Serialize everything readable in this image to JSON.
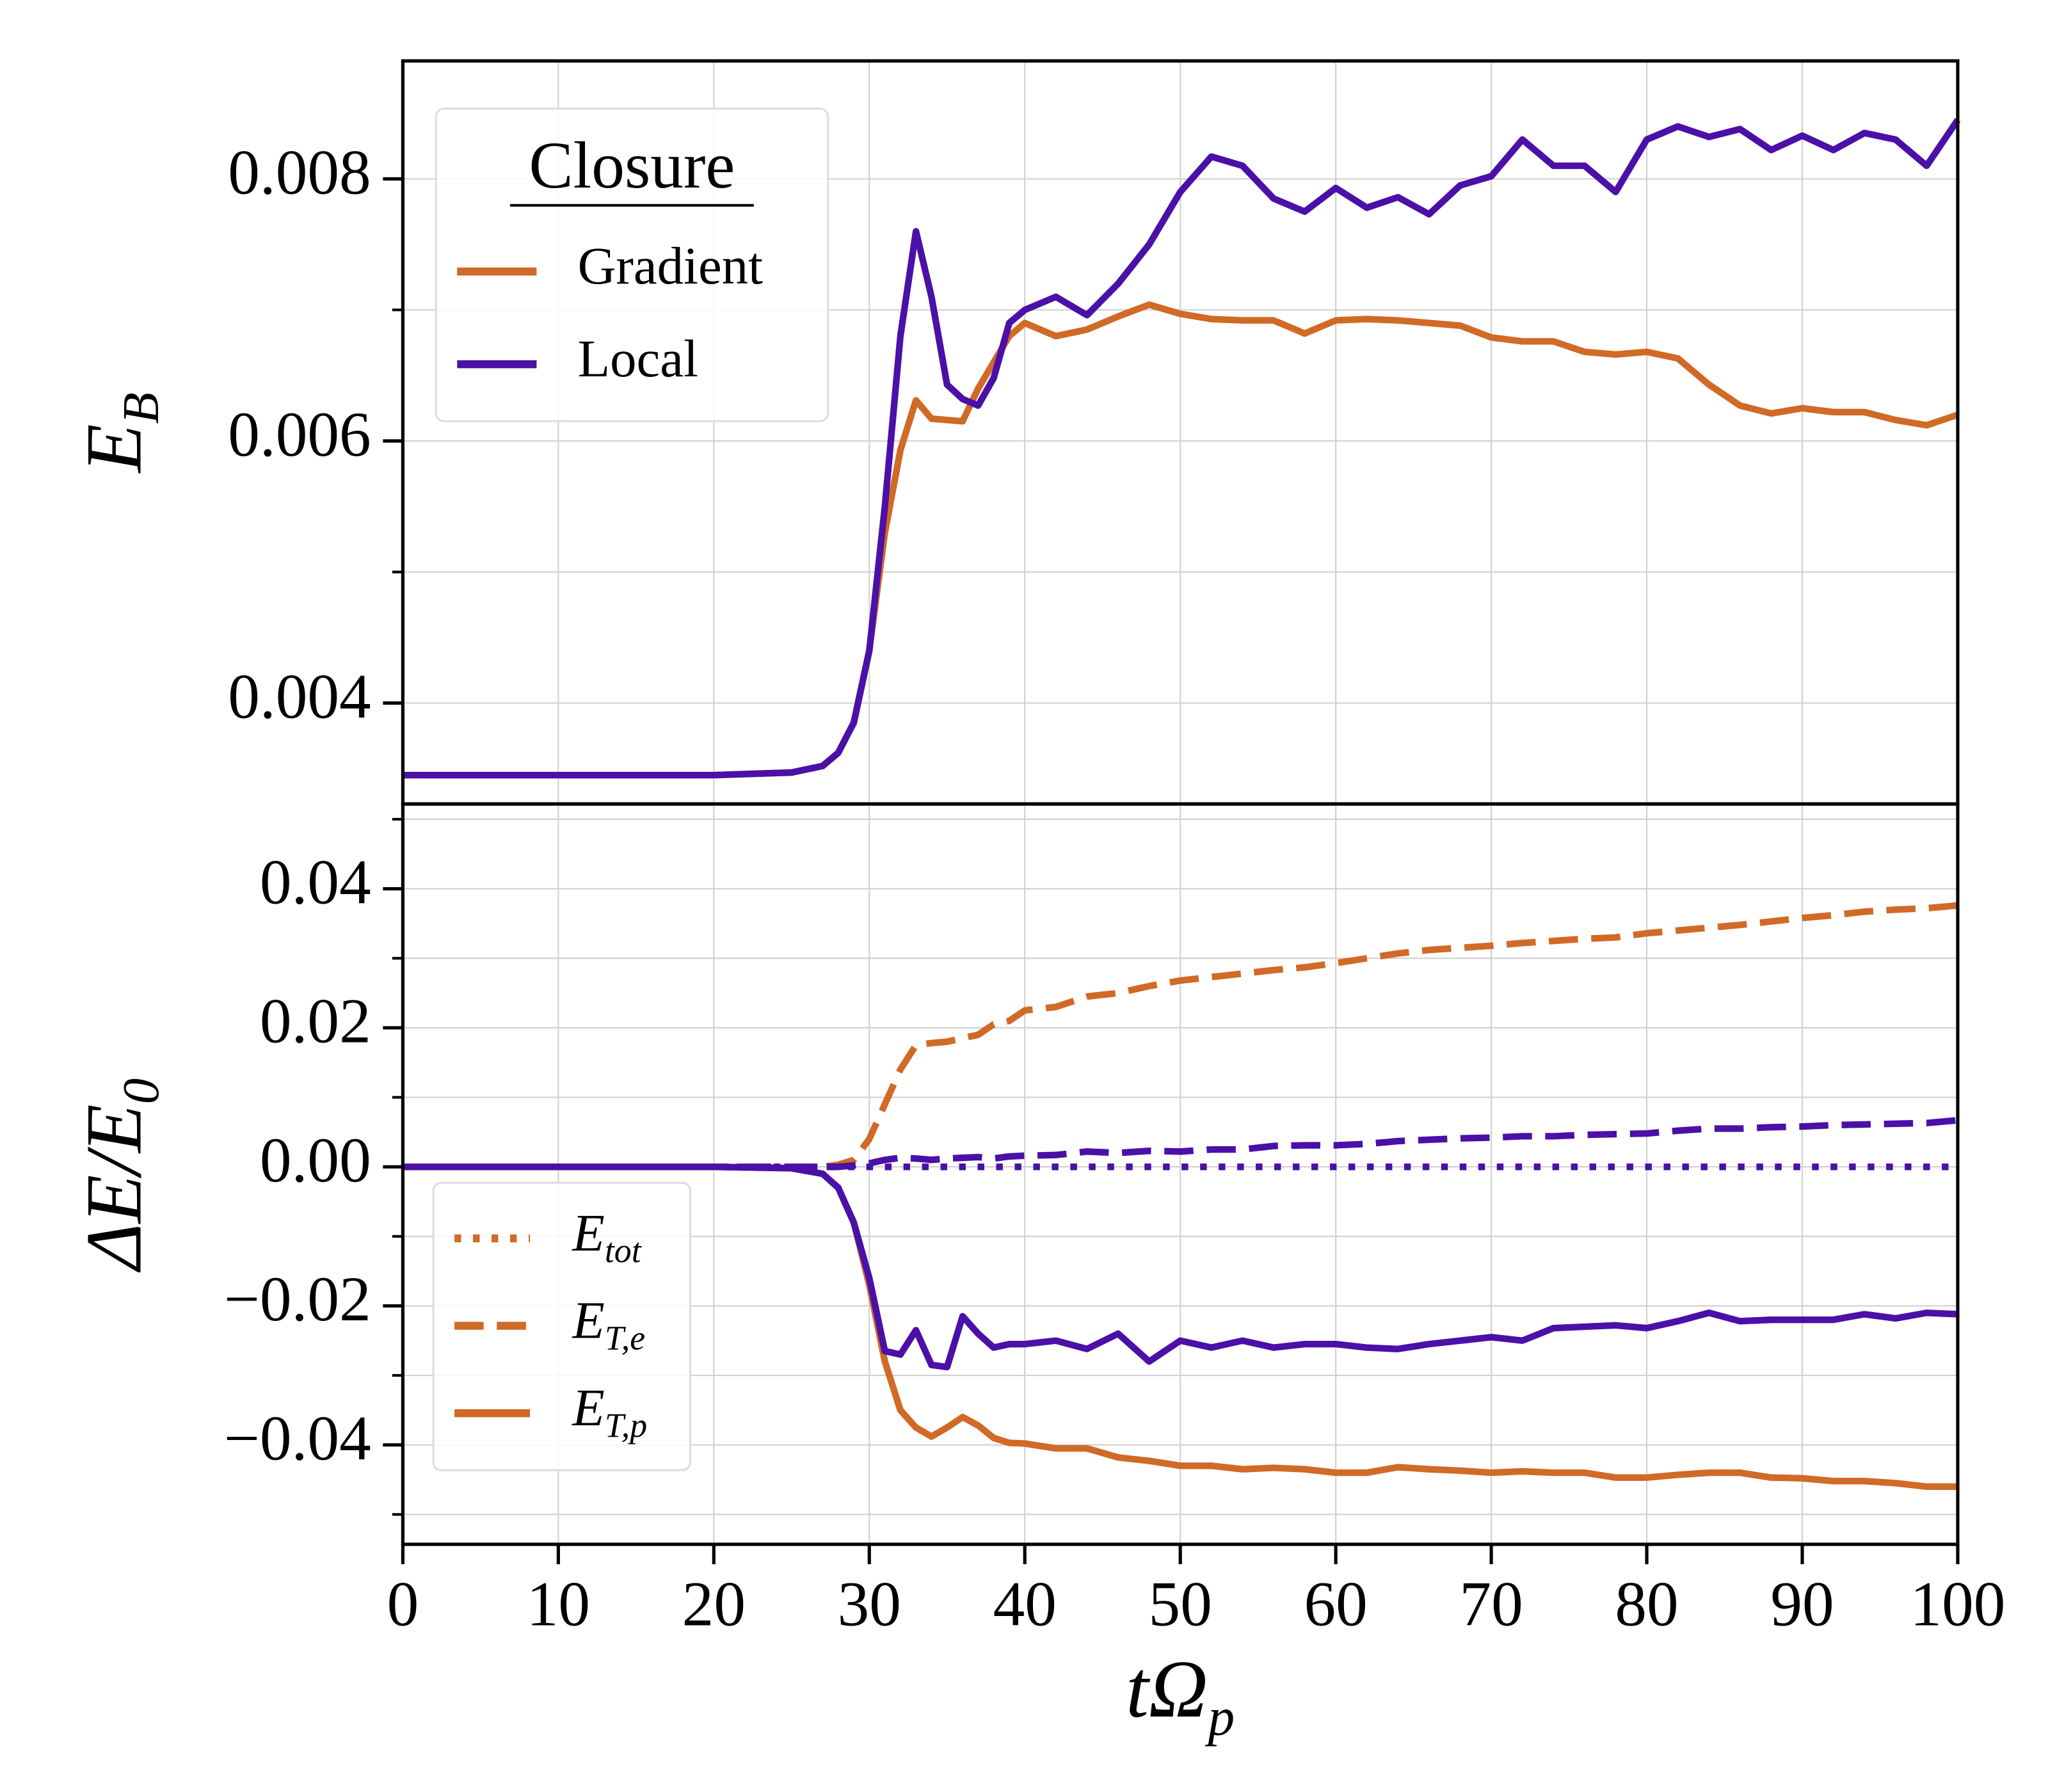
{
  "chart_data": [
    {
      "type": "line",
      "ylabel": {
        "text": "E",
        "sub": "B"
      },
      "legend_title": "Closure",
      "legend": "upper left",
      "grid": true,
      "x": [
        0,
        5,
        10,
        15,
        20,
        25,
        27,
        28,
        29,
        30,
        31,
        32,
        33,
        34,
        35,
        36,
        37,
        38,
        39,
        40,
        42,
        44,
        46,
        48,
        50,
        52,
        54,
        56,
        58,
        60,
        62,
        64,
        66,
        68,
        70,
        72,
        74,
        76,
        78,
        80,
        82,
        84,
        86,
        88,
        90,
        92,
        94,
        96,
        98,
        100
      ],
      "xlim": [
        0,
        100
      ],
      "xticks": [
        0,
        10,
        20,
        30,
        40,
        50,
        60,
        70,
        80,
        90,
        100
      ],
      "ylim": [
        0.00323,
        0.0089
      ],
      "yticks": [
        0.004,
        0.006,
        0.008
      ],
      "yminorticks": [
        0.005,
        0.007
      ],
      "series": [
        {
          "name": "Gradient",
          "color": "#d06a26",
          "style": "solid",
          "values": [
            0.00345,
            0.00345,
            0.00345,
            0.00345,
            0.00345,
            0.00347,
            0.00352,
            0.00362,
            0.00385,
            0.0044,
            0.0053,
            0.00593,
            0.00631,
            0.00617,
            0.00616,
            0.00615,
            0.0064,
            0.0066,
            0.0068,
            0.0069,
            0.0068,
            0.00685,
            0.00695,
            0.00704,
            0.00697,
            0.00693,
            0.00692,
            0.00692,
            0.00682,
            0.00692,
            0.00693,
            0.00692,
            0.0069,
            0.00688,
            0.00679,
            0.00676,
            0.00676,
            0.00668,
            0.00666,
            0.00668,
            0.00663,
            0.00643,
            0.00627,
            0.00621,
            0.00625,
            0.00622,
            0.00622,
            0.00616,
            0.00612,
            0.0062
          ]
        },
        {
          "name": "Local",
          "color": "#4a10a8",
          "style": "solid",
          "values": [
            0.00345,
            0.00345,
            0.00345,
            0.00345,
            0.00345,
            0.00347,
            0.00352,
            0.00362,
            0.00385,
            0.0044,
            0.0055,
            0.0068,
            0.0076,
            0.0071,
            0.00643,
            0.00632,
            0.00627,
            0.00648,
            0.0069,
            0.007,
            0.0071,
            0.00696,
            0.0072,
            0.0075,
            0.0079,
            0.00817,
            0.0081,
            0.00785,
            0.00775,
            0.00793,
            0.00778,
            0.00786,
            0.00773,
            0.00795,
            0.00802,
            0.0083,
            0.0081,
            0.0081,
            0.0079,
            0.0083,
            0.0084,
            0.00832,
            0.00838,
            0.00822,
            0.00833,
            0.00822,
            0.00835,
            0.0083,
            0.0081,
            0.00845
          ]
        }
      ]
    },
    {
      "type": "line",
      "ylabel": {
        "text": "ΔE/E",
        "sub": "0"
      },
      "xlabel": {
        "text": "tΩ",
        "sub": "p"
      },
      "grid": true,
      "legend": [
        {
          "text": "E",
          "sub": "tot",
          "style": "dotted"
        },
        {
          "text": "E",
          "sub": "T,e",
          "style": "dashed"
        },
        {
          "text": "E",
          "sub": "T,p",
          "style": "solid"
        }
      ],
      "legend_color": "#d06a26",
      "x": [
        0,
        5,
        10,
        15,
        20,
        25,
        27,
        28,
        29,
        30,
        31,
        32,
        33,
        34,
        35,
        36,
        37,
        38,
        39,
        40,
        42,
        44,
        46,
        48,
        50,
        52,
        54,
        56,
        58,
        60,
        62,
        64,
        66,
        68,
        70,
        72,
        74,
        76,
        78,
        80,
        82,
        84,
        86,
        88,
        90,
        92,
        94,
        96,
        98,
        100
      ],
      "xlim": [
        0,
        100
      ],
      "xticks": [
        0,
        10,
        20,
        30,
        40,
        50,
        60,
        70,
        80,
        90,
        100
      ],
      "ylim": [
        -0.0543,
        0.0522
      ],
      "yticks": [
        {
          "value": -0.04,
          "label": "−0.04"
        },
        {
          "value": -0.02,
          "label": "−0.02"
        },
        {
          "value": 0,
          "label": "0.00"
        },
        0.02,
        0.04
      ],
      "yminorticks": [
        -0.05,
        -0.03,
        -0.01,
        0.01,
        0.03,
        0.05
      ],
      "series": [
        {
          "color": "#d06a26",
          "style": "dotted",
          "values": [
            0,
            0,
            0,
            0,
            0,
            0,
            0,
            0,
            0,
            0,
            0,
            0,
            0,
            0,
            0,
            0,
            0,
            0,
            0,
            0,
            0,
            0,
            0,
            0,
            0,
            0,
            0,
            0,
            0,
            0,
            0,
            0,
            0,
            0,
            0,
            0,
            0,
            0,
            0,
            0,
            0,
            0,
            0,
            0,
            0,
            0,
            0,
            0,
            0,
            0
          ]
        },
        {
          "color": "#4a10a8",
          "style": "dotted",
          "values": [
            0,
            0,
            0,
            0,
            0,
            0,
            0,
            0,
            0,
            0,
            0,
            0,
            0,
            0,
            0,
            0,
            0,
            0,
            0,
            0,
            0,
            0,
            0,
            0,
            0,
            0,
            0,
            0,
            0,
            0,
            0,
            0,
            0,
            0,
            0,
            0,
            0,
            0,
            0,
            0,
            0,
            0,
            0,
            0,
            0,
            0,
            0,
            0,
            0,
            0
          ]
        },
        {
          "color": "#d06a26",
          "style": "dashed",
          "values": [
            0,
            0,
            0,
            0,
            0,
            0,
            0,
            0.0003,
            0.001,
            0.004,
            0.009,
            0.014,
            0.0175,
            0.0178,
            0.018,
            0.0185,
            0.019,
            0.0205,
            0.021,
            0.0225,
            0.023,
            0.0245,
            0.025,
            0.026,
            0.0268,
            0.0273,
            0.0278,
            0.0283,
            0.0287,
            0.0293,
            0.03,
            0.0307,
            0.0312,
            0.0315,
            0.0318,
            0.0322,
            0.0325,
            0.0328,
            0.033,
            0.0336,
            0.034,
            0.0344,
            0.0348,
            0.0353,
            0.0358,
            0.0362,
            0.0367,
            0.037,
            0.0372,
            0.0376
          ]
        },
        {
          "color": "#4a10a8",
          "style": "dashed",
          "values": [
            0,
            0,
            0,
            0,
            0,
            0,
            0,
            0,
            0.0002,
            0.0005,
            0.001,
            0.0013,
            0.0012,
            0.001,
            0.0012,
            0.0013,
            0.0014,
            0.0012,
            0.0015,
            0.0016,
            0.0017,
            0.0022,
            0.002,
            0.0023,
            0.0022,
            0.0025,
            0.0025,
            0.003,
            0.0031,
            0.0031,
            0.0033,
            0.0037,
            0.0039,
            0.0041,
            0.0042,
            0.0044,
            0.0044,
            0.0046,
            0.0047,
            0.0048,
            0.0052,
            0.0055,
            0.0055,
            0.0057,
            0.0058,
            0.006,
            0.0061,
            0.0062,
            0.0063,
            0.0067
          ]
        },
        {
          "color": "#d06a26",
          "style": "solid",
          "values": [
            0,
            0,
            0,
            0,
            0,
            -0.0002,
            -0.001,
            -0.003,
            -0.008,
            -0.017,
            -0.028,
            -0.035,
            -0.0375,
            -0.0388,
            -0.0375,
            -0.036,
            -0.0372,
            -0.039,
            -0.0397,
            -0.0398,
            -0.0405,
            -0.0405,
            -0.0418,
            -0.0423,
            -0.043,
            -0.043,
            -0.0435,
            -0.0433,
            -0.0435,
            -0.044,
            -0.044,
            -0.0432,
            -0.0435,
            -0.0437,
            -0.044,
            -0.0438,
            -0.044,
            -0.044,
            -0.0447,
            -0.0447,
            -0.0443,
            -0.044,
            -0.044,
            -0.0447,
            -0.0448,
            -0.0452,
            -0.0452,
            -0.0455,
            -0.046,
            -0.046
          ]
        },
        {
          "color": "#4a10a8",
          "style": "solid",
          "values": [
            0,
            0,
            0,
            0,
            0,
            -0.0002,
            -0.001,
            -0.003,
            -0.008,
            -0.016,
            -0.0265,
            -0.027,
            -0.0235,
            -0.0285,
            -0.0288,
            -0.0215,
            -0.024,
            -0.026,
            -0.0255,
            -0.0255,
            -0.025,
            -0.0262,
            -0.024,
            -0.028,
            -0.025,
            -0.026,
            -0.025,
            -0.026,
            -0.0255,
            -0.0255,
            -0.026,
            -0.0262,
            -0.0255,
            -0.025,
            -0.0245,
            -0.025,
            -0.0232,
            -0.023,
            -0.0228,
            -0.0232,
            -0.0222,
            -0.021,
            -0.0222,
            -0.022,
            -0.022,
            -0.022,
            -0.0212,
            -0.0218,
            -0.021,
            -0.0212
          ]
        }
      ]
    }
  ]
}
